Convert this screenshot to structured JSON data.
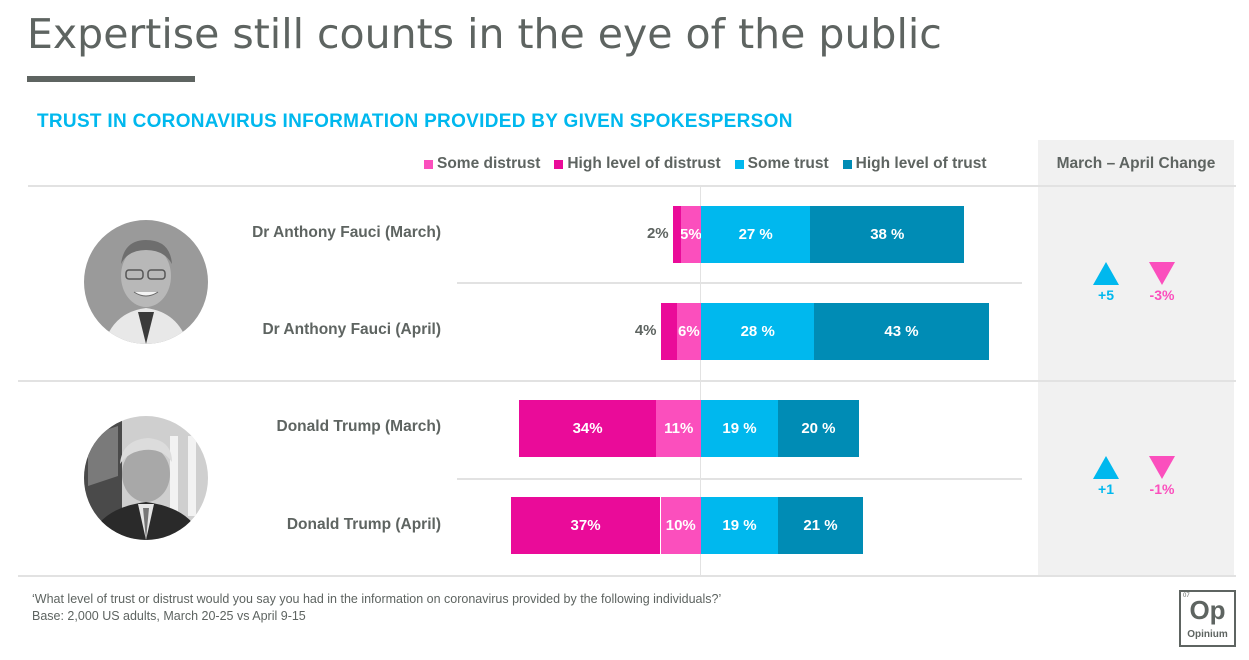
{
  "header": {
    "title": "Expertise still counts in the eye of the public",
    "subtitle": "TRUST IN CORONAVIRUS INFORMATION PROVIDED BY GIVEN SPOKESPERSON"
  },
  "legend": [
    {
      "label": "Some distrust",
      "color": "#fb4fbd"
    },
    {
      "label": "High level of distrust",
      "color": "#ea0b99"
    },
    {
      "label": "Some trust",
      "color": "#00b8ee"
    },
    {
      "label": "High level of trust",
      "color": "#008cb5"
    }
  ],
  "change_panel": {
    "title": "March – April Change",
    "groups": [
      {
        "person": "Dr Anthony Fauci",
        "up_label": "+5",
        "down_label": "-3%"
      },
      {
        "person": "Donald Trump",
        "up_label": "+1",
        "down_label": "-1%"
      }
    ]
  },
  "people": [
    {
      "name": "Dr Anthony Fauci",
      "avatar": "fauci-photo"
    },
    {
      "name": "Donald Trump",
      "avatar": "trump-photo"
    }
  ],
  "chart_data": {
    "type": "bar",
    "orientation": "horizontal",
    "stacked": "diverging",
    "title": "TRUST IN CORONAVIRUS INFORMATION PROVIDED BY GIVEN SPOKESPERSON",
    "categories": [
      "Dr Anthony Fauci (March)",
      "Dr Anthony Fauci (April)",
      "Donald Trump (March)",
      "Donald Trump (April)"
    ],
    "series": [
      {
        "name": "High level of distrust",
        "side": "negative",
        "color": "#ea0b99",
        "values": [
          2,
          4,
          34,
          37
        ],
        "labels": [
          "2%",
          "4%",
          "34%",
          "37%"
        ]
      },
      {
        "name": "Some distrust",
        "side": "negative",
        "color": "#fb4fbd",
        "values": [
          5,
          6,
          11,
          10
        ],
        "labels": [
          "5%",
          "6%",
          "11%",
          "10%"
        ]
      },
      {
        "name": "Some trust",
        "side": "positive",
        "color": "#00b8ee",
        "values": [
          27,
          28,
          19,
          19
        ],
        "labels": [
          "27 %",
          "28 %",
          "19 %",
          "19 %"
        ]
      },
      {
        "name": "High level of trust",
        "side": "positive",
        "color": "#008cb5",
        "values": [
          38,
          43,
          20,
          21
        ],
        "labels": [
          "38 %",
          "43 %",
          "20 %",
          "21 %"
        ]
      }
    ],
    "legend_position": "top-right",
    "grid": false
  },
  "footer": {
    "question": "‘What level of trust or distrust would you say you had in the information on coronavirus provided by the following individuals?’",
    "base": "Base: 2,000 US adults, March 20-25 vs April 9-15"
  },
  "logo": {
    "number": "07",
    "symbol": "Op",
    "name": "Opinium"
  }
}
